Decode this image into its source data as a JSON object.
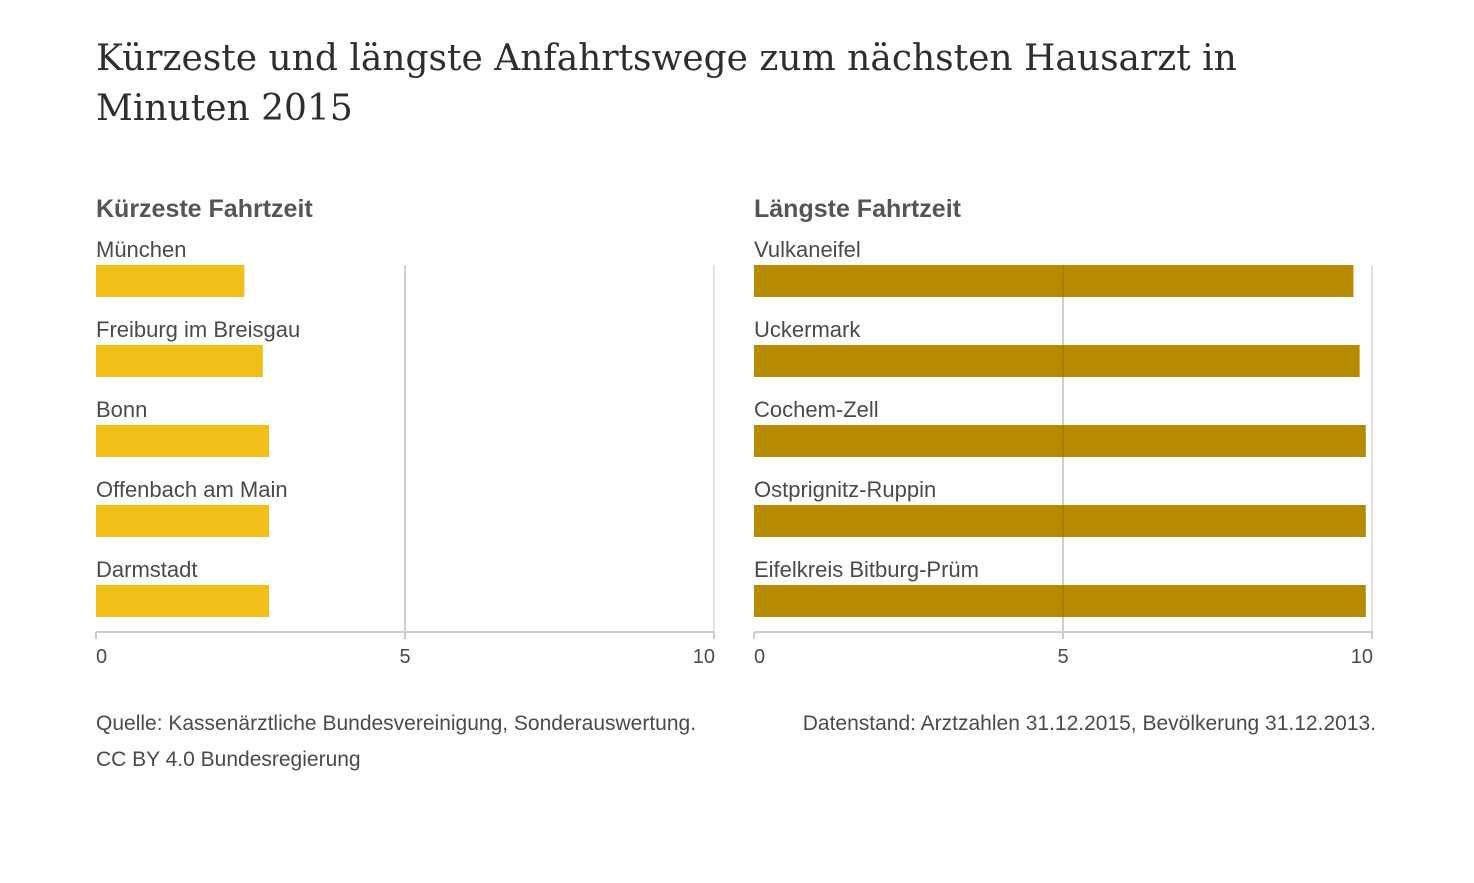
{
  "title": "Kürzeste und längste Anfahrtswege zum nächsten Hausarzt in Minuten 2015",
  "chart_data": [
    {
      "type": "bar",
      "orientation": "horizontal",
      "title": "Kürzeste Fahrtzeit",
      "categories": [
        "München",
        "Freiburg im Breisgau",
        "Bonn",
        "Offenbach am Main",
        "Darmstadt"
      ],
      "values": [
        2.4,
        2.7,
        2.8,
        2.8,
        2.8
      ],
      "xlim": [
        0,
        10
      ],
      "xticks": [
        0,
        5,
        10
      ],
      "color": "#f0c018"
    },
    {
      "type": "bar",
      "orientation": "horizontal",
      "title": "Längste Fahrtzeit",
      "categories": [
        "Vulkaneifel",
        "Uckermark",
        "Cochem-Zell",
        "Ostprignitz-Ruppin",
        "Eifelkreis Bitburg-Prüm"
      ],
      "values": [
        9.7,
        9.8,
        9.9,
        9.9,
        9.9
      ],
      "xlim": [
        0,
        10
      ],
      "xticks": [
        0,
        5,
        10
      ],
      "color": "#b78b00"
    }
  ],
  "footer": {
    "source_line1": "Quelle: Kassenärztliche Bundesvereinigung, Sonderauswertung.",
    "source_line2": "CC BY 4.0 Bundesregierung",
    "datestand": "Datenstand: Arztzahlen 31.12.2015, Bevölkerung 31.12.2013."
  },
  "colors": {
    "gridline": "#d9d9d9",
    "axis": "#cccccc"
  }
}
